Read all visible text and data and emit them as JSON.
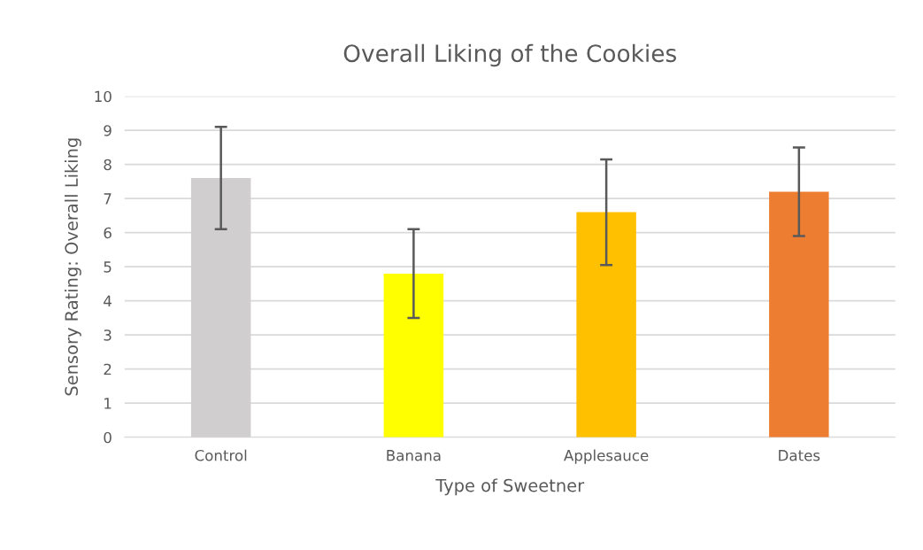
{
  "chart_data": {
    "type": "bar",
    "title": "Overall Liking of the Cookies",
    "xlabel": "Type of Sweetner",
    "ylabel": "Sensory Rating: Overall Liking",
    "categories": [
      "Control",
      "Banana",
      "Applesauce",
      "Dates"
    ],
    "values": [
      7.6,
      4.8,
      6.6,
      7.2
    ],
    "colors": [
      "#d0cece",
      "#ffff00",
      "#ffc000",
      "#ed7d31"
    ],
    "errors": [
      1.5,
      1.3,
      1.55,
      1.3
    ],
    "ylim": [
      0,
      10
    ],
    "yticks": [
      0,
      1,
      2,
      3,
      4,
      5,
      6,
      7,
      8,
      9,
      10
    ],
    "grid": "y"
  }
}
